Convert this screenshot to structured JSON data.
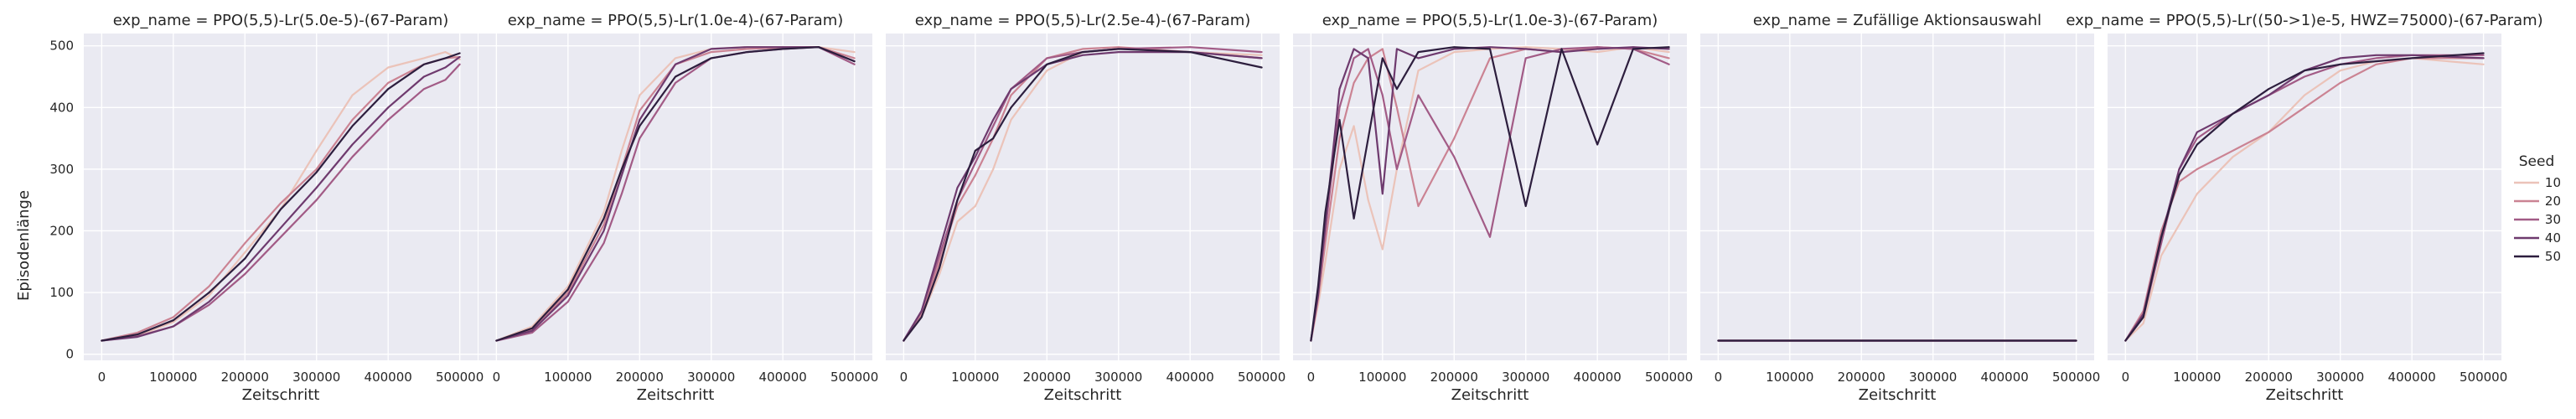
{
  "chart_data": {
    "type": "line",
    "xlabel": "Zeitschritt",
    "ylabel": "Episodenlänge",
    "xlim": [
      -25000,
      525000
    ],
    "ylim": [
      -10,
      520
    ],
    "xticks": [
      "0",
      "100000",
      "200000",
      "300000",
      "400000",
      "500000"
    ],
    "yticks": [
      "0",
      "100",
      "200",
      "300",
      "400",
      "500"
    ],
    "grid": true,
    "legend": {
      "title": "Seed",
      "placement": "right",
      "entries": [
        {
          "label": "10",
          "color": "#ebc3b9"
        },
        {
          "label": "20",
          "color": "#cb8393"
        },
        {
          "label": "30",
          "color": "#a25b86"
        },
        {
          "label": "40",
          "color": "#6e3a6e"
        },
        {
          "label": "50",
          "color": "#2d1e3e"
        }
      ]
    },
    "panels": [
      {
        "title": "exp_name = PPO(5,5)-Lr(5.0e-5)-(67-Param)",
        "series": [
          {
            "name": "10",
            "x": [
              0,
              50000,
              100000,
              150000,
              200000,
              250000,
              300000,
              350000,
              400000,
              450000,
              480000,
              500000
            ],
            "y": [
              22,
              30,
              52,
              95,
              165,
              235,
              330,
              420,
              465,
              480,
              490,
              478
            ]
          },
          {
            "name": "20",
            "x": [
              0,
              50000,
              100000,
              150000,
              200000,
              250000,
              300000,
              350000,
              400000,
              450000,
              480000,
              500000
            ],
            "y": [
              22,
              35,
              60,
              110,
              180,
              245,
              300,
              380,
              440,
              470,
              480,
              482
            ]
          },
          {
            "name": "30",
            "x": [
              0,
              50000,
              100000,
              150000,
              200000,
              250000,
              300000,
              350000,
              400000,
              450000,
              480000,
              500000
            ],
            "y": [
              22,
              29,
              45,
              80,
              130,
              190,
              250,
              320,
              380,
              430,
              445,
              470
            ]
          },
          {
            "name": "40",
            "x": [
              0,
              50000,
              100000,
              150000,
              200000,
              250000,
              300000,
              350000,
              400000,
              450000,
              480000,
              500000
            ],
            "y": [
              22,
              28,
              45,
              85,
              140,
              205,
              270,
              340,
              400,
              450,
              465,
              482
            ]
          },
          {
            "name": "50",
            "x": [
              0,
              50000,
              100000,
              150000,
              200000,
              250000,
              300000,
              350000,
              400000,
              450000,
              480000,
              500000
            ],
            "y": [
              22,
              32,
              55,
              100,
              155,
              235,
              295,
              370,
              430,
              470,
              480,
              488
            ]
          }
        ]
      },
      {
        "title": "exp_name = PPO(5,5)-Lr(1.0e-4)-(67-Param)",
        "series": [
          {
            "name": "10",
            "x": [
              0,
              50000,
              100000,
              150000,
              175000,
              200000,
              250000,
              300000,
              350000,
              400000,
              450000,
              500000
            ],
            "y": [
              22,
              45,
              110,
              230,
              330,
              420,
              480,
              495,
              498,
              498,
              498,
              490
            ]
          },
          {
            "name": "20",
            "x": [
              0,
              50000,
              100000,
              150000,
              175000,
              200000,
              250000,
              300000,
              350000,
              400000,
              450000,
              500000
            ],
            "y": [
              22,
              40,
              100,
              210,
              300,
              395,
              470,
              490,
              495,
              497,
              498,
              480
            ]
          },
          {
            "name": "30",
            "x": [
              0,
              50000,
              100000,
              150000,
              175000,
              200000,
              250000,
              300000,
              350000,
              400000,
              450000,
              500000
            ],
            "y": [
              22,
              35,
              85,
              180,
              260,
              350,
              440,
              480,
              490,
              495,
              498,
              470
            ]
          },
          {
            "name": "40",
            "x": [
              0,
              50000,
              100000,
              150000,
              175000,
              200000,
              250000,
              300000,
              350000,
              400000,
              450000,
              500000
            ],
            "y": [
              22,
              38,
              95,
              200,
              290,
              380,
              470,
              495,
              498,
              498,
              498,
              475
            ]
          },
          {
            "name": "50",
            "x": [
              0,
              50000,
              100000,
              150000,
              175000,
              200000,
              250000,
              300000,
              350000,
              400000,
              450000,
              500000
            ],
            "y": [
              22,
              42,
              105,
              220,
              300,
              370,
              450,
              480,
              490,
              495,
              498,
              475
            ]
          }
        ]
      },
      {
        "title": "exp_name = PPO(5,5)-Lr(2.5e-4)-(67-Param)",
        "series": [
          {
            "name": "10",
            "x": [
              0,
              25000,
              50000,
              75000,
              100000,
              125000,
              150000,
              200000,
              250000,
              300000,
              400000,
              500000
            ],
            "y": [
              22,
              60,
              130,
              215,
              240,
              300,
              380,
              460,
              490,
              495,
              490,
              485
            ]
          },
          {
            "name": "20",
            "x": [
              0,
              25000,
              50000,
              75000,
              100000,
              125000,
              150000,
              200000,
              250000,
              300000,
              400000,
              500000
            ],
            "y": [
              22,
              65,
              150,
              240,
              290,
              350,
              420,
              480,
              495,
              498,
              490,
              480
            ]
          },
          {
            "name": "30",
            "x": [
              0,
              25000,
              50000,
              75000,
              100000,
              125000,
              150000,
              200000,
              250000,
              300000,
              400000,
              500000
            ],
            "y": [
              22,
              70,
              160,
              250,
              310,
              370,
              430,
              480,
              490,
              495,
              498,
              490
            ]
          },
          {
            "name": "40",
            "x": [
              0,
              25000,
              50000,
              75000,
              100000,
              125000,
              150000,
              200000,
              250000,
              300000,
              400000,
              500000
            ],
            "y": [
              22,
              70,
              170,
              270,
              320,
              380,
              430,
              470,
              485,
              490,
              490,
              480
            ]
          },
          {
            "name": "50",
            "x": [
              0,
              25000,
              50000,
              75000,
              100000,
              125000,
              150000,
              200000,
              250000,
              300000,
              400000,
              500000
            ],
            "y": [
              22,
              60,
              140,
              250,
              330,
              350,
              400,
              470,
              490,
              495,
              490,
              465
            ]
          }
        ]
      },
      {
        "title": "exp_name = PPO(5,5)-Lr(1.0e-3)-(67-Param)",
        "series": [
          {
            "name": "10",
            "x": [
              0,
              10000,
              20000,
              40000,
              60000,
              80000,
              100000,
              120000,
              150000,
              200000,
              250000,
              300000,
              350000,
              400000,
              450000,
              500000
            ],
            "y": [
              22,
              80,
              150,
              300,
              370,
              250,
              170,
              300,
              460,
              490,
              495,
              498,
              495,
              490,
              498,
              490
            ]
          },
          {
            "name": "20",
            "x": [
              0,
              10000,
              20000,
              40000,
              60000,
              80000,
              100000,
              120000,
              150000,
              200000,
              250000,
              300000,
              350000,
              400000,
              450000,
              500000
            ],
            "y": [
              22,
              90,
              180,
              350,
              440,
              480,
              495,
              400,
              240,
              350,
              480,
              495,
              490,
              498,
              495,
              480
            ]
          },
          {
            "name": "30",
            "x": [
              0,
              10000,
              20000,
              40000,
              60000,
              80000,
              100000,
              120000,
              150000,
              200000,
              250000,
              300000,
              350000,
              400000,
              450000,
              500000
            ],
            "y": [
              22,
              100,
              200,
              400,
              480,
              495,
              420,
              300,
              420,
              320,
              190,
              480,
              495,
              498,
              495,
              470
            ]
          },
          {
            "name": "40",
            "x": [
              0,
              10000,
              20000,
              40000,
              60000,
              80000,
              100000,
              120000,
              150000,
              200000,
              250000,
              300000,
              350000,
              400000,
              450000,
              500000
            ],
            "y": [
              22,
              95,
              210,
              430,
              495,
              480,
              260,
              495,
              480,
              495,
              498,
              495,
              490,
              495,
              498,
              495
            ]
          },
          {
            "name": "50",
            "x": [
              0,
              10000,
              20000,
              40000,
              60000,
              80000,
              100000,
              120000,
              150000,
              200000,
              250000,
              300000,
              350000,
              400000,
              450000,
              500000
            ],
            "y": [
              22,
              110,
              230,
              380,
              220,
              350,
              480,
              430,
              490,
              498,
              495,
              240,
              495,
              340,
              495,
              498
            ]
          }
        ]
      },
      {
        "title": "exp_name = Zufällige Aktionsauswahl",
        "series": [
          {
            "name": "10",
            "x": [
              0,
              100000,
              200000,
              300000,
              400000,
              500000
            ],
            "y": [
              22,
              22,
              22,
              22,
              22,
              22
            ]
          },
          {
            "name": "20",
            "x": [
              0,
              100000,
              200000,
              300000,
              400000,
              500000
            ],
            "y": [
              22,
              22,
              22,
              22,
              22,
              22
            ]
          },
          {
            "name": "30",
            "x": [
              0,
              100000,
              200000,
              300000,
              400000,
              500000
            ],
            "y": [
              22,
              22,
              22,
              22,
              22,
              22
            ]
          },
          {
            "name": "40",
            "x": [
              0,
              100000,
              200000,
              300000,
              400000,
              500000
            ],
            "y": [
              22,
              22,
              22,
              22,
              22,
              22
            ]
          },
          {
            "name": "50",
            "x": [
              0,
              100000,
              200000,
              300000,
              400000,
              500000
            ],
            "y": [
              22,
              22,
              22,
              22,
              22,
              22
            ]
          }
        ]
      },
      {
        "title": "exp_name = PPO(5,5)-Lr((50->1)e-5, HWZ=75000)-(67-Param)",
        "series": [
          {
            "name": "10",
            "x": [
              0,
              25000,
              50000,
              75000,
              100000,
              150000,
              200000,
              250000,
              300000,
              350000,
              400000,
              500000
            ],
            "y": [
              22,
              50,
              160,
              210,
              260,
              320,
              360,
              420,
              460,
              475,
              480,
              470
            ]
          },
          {
            "name": "20",
            "x": [
              0,
              25000,
              50000,
              75000,
              100000,
              150000,
              200000,
              250000,
              300000,
              350000,
              400000,
              500000
            ],
            "y": [
              22,
              70,
              200,
              280,
              300,
              330,
              360,
              400,
              440,
              470,
              480,
              480
            ]
          },
          {
            "name": "30",
            "x": [
              0,
              25000,
              50000,
              75000,
              100000,
              150000,
              200000,
              250000,
              300000,
              350000,
              400000,
              500000
            ],
            "y": [
              22,
              60,
              180,
              300,
              350,
              390,
              420,
              450,
              470,
              480,
              485,
              485
            ]
          },
          {
            "name": "40",
            "x": [
              0,
              25000,
              50000,
              75000,
              100000,
              150000,
              200000,
              250000,
              300000,
              350000,
              400000,
              500000
            ],
            "y": [
              22,
              65,
              190,
              300,
              360,
              390,
              420,
              460,
              480,
              485,
              485,
              480
            ]
          },
          {
            "name": "50",
            "x": [
              0,
              25000,
              50000,
              75000,
              100000,
              150000,
              200000,
              250000,
              300000,
              350000,
              400000,
              500000
            ],
            "y": [
              22,
              60,
              190,
              290,
              340,
              390,
              430,
              460,
              470,
              475,
              480,
              488
            ]
          }
        ]
      }
    ]
  }
}
